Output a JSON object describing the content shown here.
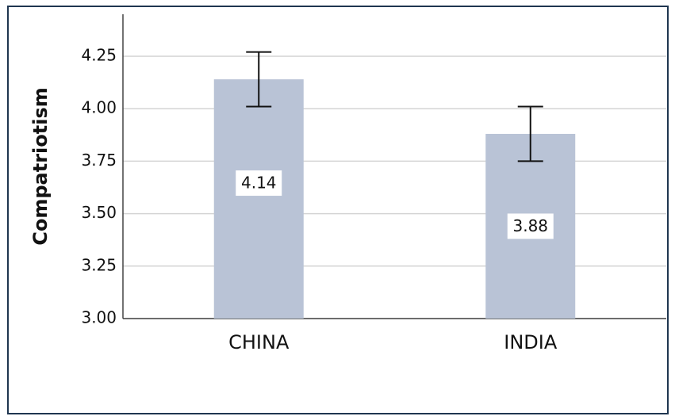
{
  "chart_data": {
    "type": "bar",
    "y_label": "Compatriotism",
    "categories": [
      "CHINA",
      "INDIA"
    ],
    "values": [
      4.14,
      3.88
    ],
    "errors": [
      0.13,
      0.13
    ],
    "color": "#b9c3d6",
    "ylim": [
      3,
      4.45
    ],
    "yticks": [
      {
        "value": 3,
        "label": "3.00"
      },
      3.25,
      {
        "value": 3.5,
        "label": "3.50"
      },
      3.75,
      {
        "value": 4,
        "label": "4.00"
      },
      4.25
    ],
    "grid": true
  }
}
